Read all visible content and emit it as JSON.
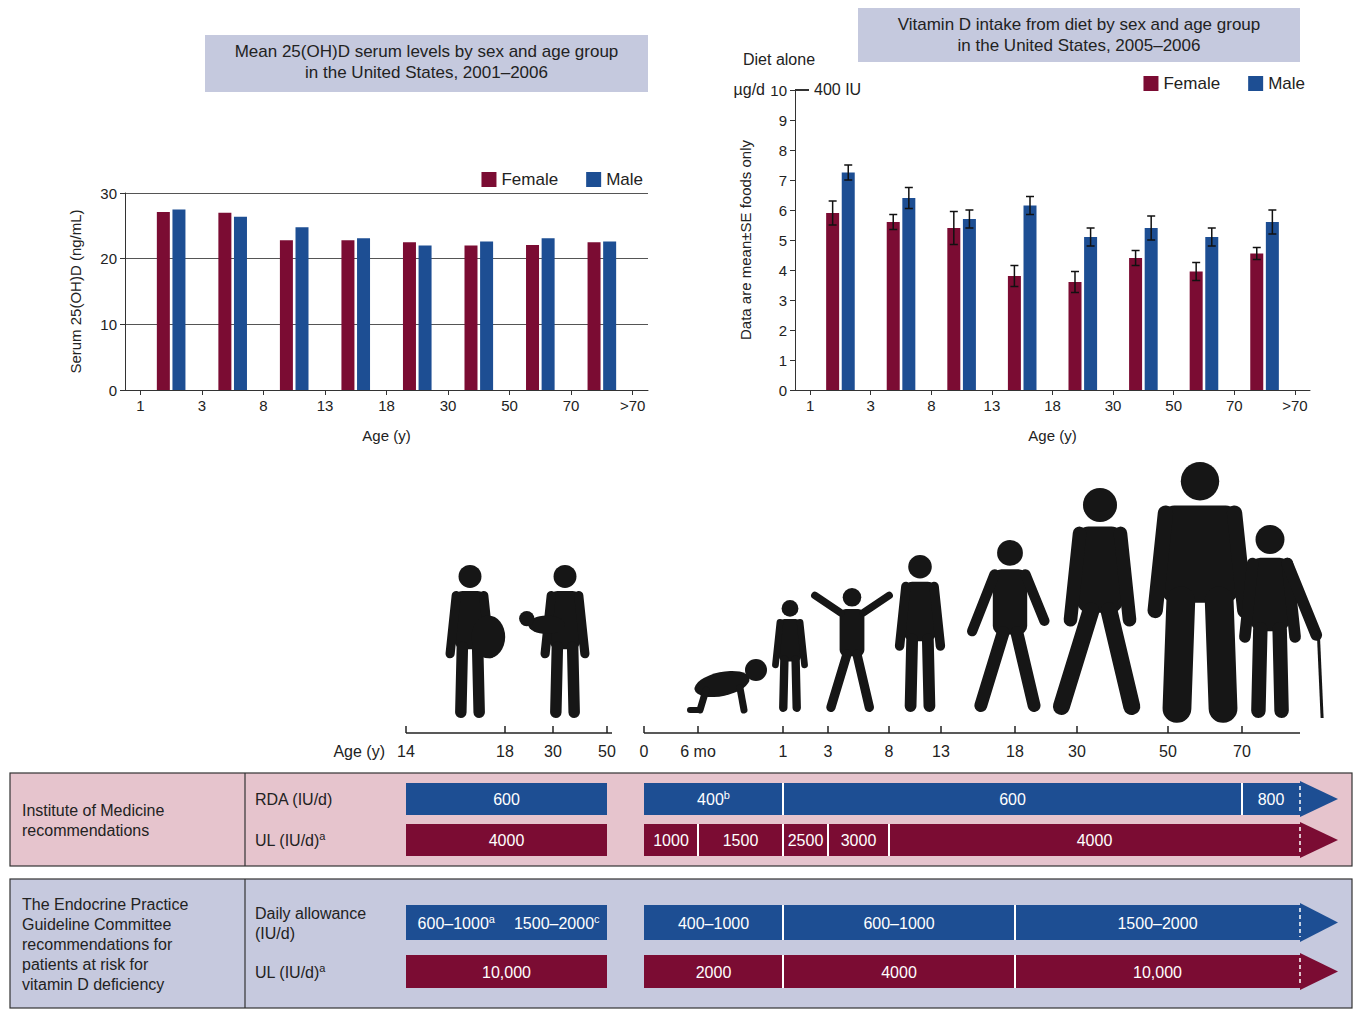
{
  "chart_data": [
    {
      "type": "bar",
      "title": "Mean 25(OH)D serum levels by sex and age group in the United States, 2001–2006",
      "categories": [
        "1",
        null,
        "3",
        null,
        "8",
        null,
        "13",
        null,
        "18",
        null,
        "30",
        null,
        "50",
        null,
        "70",
        null,
        ">70"
      ],
      "series": [
        {
          "name": "Female",
          "color": "#7b0c33",
          "values": [
            null,
            27.1,
            null,
            27.0,
            null,
            22.8,
            null,
            22.8,
            null,
            22.5,
            null,
            22.0,
            null,
            22.1,
            null,
            22.5,
            null
          ]
        },
        {
          "name": "Male",
          "color": "#1d4e93",
          "values": [
            null,
            27.5,
            null,
            26.4,
            null,
            24.8,
            null,
            23.1,
            null,
            22.0,
            null,
            22.6,
            null,
            23.1,
            null,
            22.6,
            null
          ]
        }
      ],
      "xlabel": "Age (y)",
      "ylabel": "Serum 25(OH)D (ng/mL)",
      "ylim": [
        0,
        30
      ],
      "yticks": [
        0,
        10,
        20,
        30
      ],
      "grid": true,
      "legend": "top-right"
    },
    {
      "type": "bar",
      "title": "Vitamin D intake from diet by sex and age group in the United States, 2005–2006",
      "subtitle": "Diet alone",
      "y_unit": "µg/d",
      "annotations": [
        {
          "text": "400 IU",
          "y": 10
        }
      ],
      "categories": [
        "1",
        null,
        "3",
        null,
        "8",
        null,
        "13",
        null,
        "18",
        null,
        "30",
        null,
        "50",
        null,
        "70",
        null,
        ">70"
      ],
      "series": [
        {
          "name": "Female",
          "color": "#7b0c33",
          "values": [
            null,
            5.9,
            null,
            5.6,
            null,
            5.4,
            null,
            3.8,
            null,
            3.6,
            null,
            4.4,
            null,
            3.95,
            null,
            4.55,
            null
          ],
          "errors": [
            null,
            0.4,
            null,
            0.25,
            null,
            0.55,
            null,
            0.35,
            null,
            0.35,
            null,
            0.25,
            null,
            0.3,
            null,
            0.2,
            null
          ]
        },
        {
          "name": "Male",
          "color": "#1d4e93",
          "values": [
            null,
            7.25,
            null,
            6.4,
            null,
            5.7,
            null,
            6.15,
            null,
            5.1,
            null,
            5.4,
            null,
            5.1,
            null,
            5.6,
            null
          ],
          "errors": [
            null,
            0.25,
            null,
            0.35,
            null,
            0.3,
            null,
            0.3,
            null,
            0.3,
            null,
            0.4,
            null,
            0.3,
            null,
            0.4,
            null
          ]
        }
      ],
      "xlabel": "Age (y)",
      "ylabel": "Data are mean±SE foods only",
      "ylim": [
        0,
        10
      ],
      "yticks": [
        0,
        1,
        2,
        3,
        4,
        5,
        6,
        7,
        8,
        9,
        10
      ],
      "grid": false,
      "legend": "top-right"
    }
  ],
  "timeline": {
    "label": "Age (y)",
    "pregnancy_ticks": [
      "14",
      "18",
      "30",
      "50"
    ],
    "lifespan_ticks": [
      "0",
      "6 mo",
      "1",
      "3",
      "8",
      "13",
      "18",
      "30",
      "50",
      "70"
    ]
  },
  "recommendations": [
    {
      "source": "Institute of Medicine recommendations",
      "rows": [
        {
          "label": {
            "text": "RDA (IU/d)"
          },
          "color": "#1d4e93",
          "pregnancy": [
            {
              "texts": [
                {
                  "text": "600"
                }
              ],
              "from": "14",
              "to": "50"
            }
          ],
          "lifespan": [
            {
              "texts": [
                {
                  "text": "400",
                  "sup": "b"
                }
              ],
              "from": "0",
              "to": "1"
            },
            {
              "texts": [
                {
                  "text": "600"
                }
              ],
              "from": "1",
              "to": "70"
            },
            {
              "texts": [
                {
                  "text": "800"
                }
              ],
              "from": "70",
              "to": null
            }
          ]
        },
        {
          "label": {
            "text": "UL (IU/d)",
            "sup": "a"
          },
          "color": "#7b0c33",
          "pregnancy": [
            {
              "texts": [
                {
                  "text": "4000"
                }
              ],
              "from": "14",
              "to": "50"
            }
          ],
          "lifespan": [
            {
              "texts": [
                {
                  "text": "1000"
                }
              ],
              "from": "0",
              "to": "6 mo"
            },
            {
              "texts": [
                {
                  "text": "1500"
                }
              ],
              "from": "6 mo",
              "to": "1"
            },
            {
              "texts": [
                {
                  "text": "2500"
                }
              ],
              "from": "1",
              "to": "3"
            },
            {
              "texts": [
                {
                  "text": "3000"
                }
              ],
              "from": "3",
              "to": "8"
            },
            {
              "texts": [
                {
                  "text": "4000"
                }
              ],
              "from": "8",
              "to": null
            }
          ]
        }
      ]
    },
    {
      "source": "The Endocrine Practice Guideline Committee recommendations for patients at risk for vitamin D deficiency",
      "rows": [
        {
          "label": {
            "text": "Daily allowance (IU/d)"
          },
          "color": "#1d4e93",
          "pregnancy": [
            {
              "texts": [
                {
                  "text": "600–1000",
                  "sup": "a"
                },
                {
                  "text": "1500–2000",
                  "sup": "c"
                }
              ],
              "from": "14",
              "to": "50"
            }
          ],
          "lifespan": [
            {
              "texts": [
                {
                  "text": "400–1000"
                }
              ],
              "from": "0",
              "to": "1"
            },
            {
              "texts": [
                {
                  "text": "600–1000"
                }
              ],
              "from": "1",
              "to": "18"
            },
            {
              "texts": [
                {
                  "text": "1500–2000"
                }
              ],
              "from": "18",
              "to": null
            }
          ]
        },
        {
          "label": {
            "text": "UL (IU/d)",
            "sup": "a"
          },
          "color": "#7b0c33",
          "pregnancy": [
            {
              "texts": [
                {
                  "text": "10,000"
                }
              ],
              "from": "14",
              "to": "50"
            }
          ],
          "lifespan": [
            {
              "texts": [
                {
                  "text": "2000"
                }
              ],
              "from": "0",
              "to": "1"
            },
            {
              "texts": [
                {
                  "text": "4000"
                }
              ],
              "from": "1",
              "to": "18"
            },
            {
              "texts": [
                {
                  "text": "10,000"
                }
              ],
              "from": "18",
              "to": null
            }
          ]
        }
      ]
    }
  ]
}
